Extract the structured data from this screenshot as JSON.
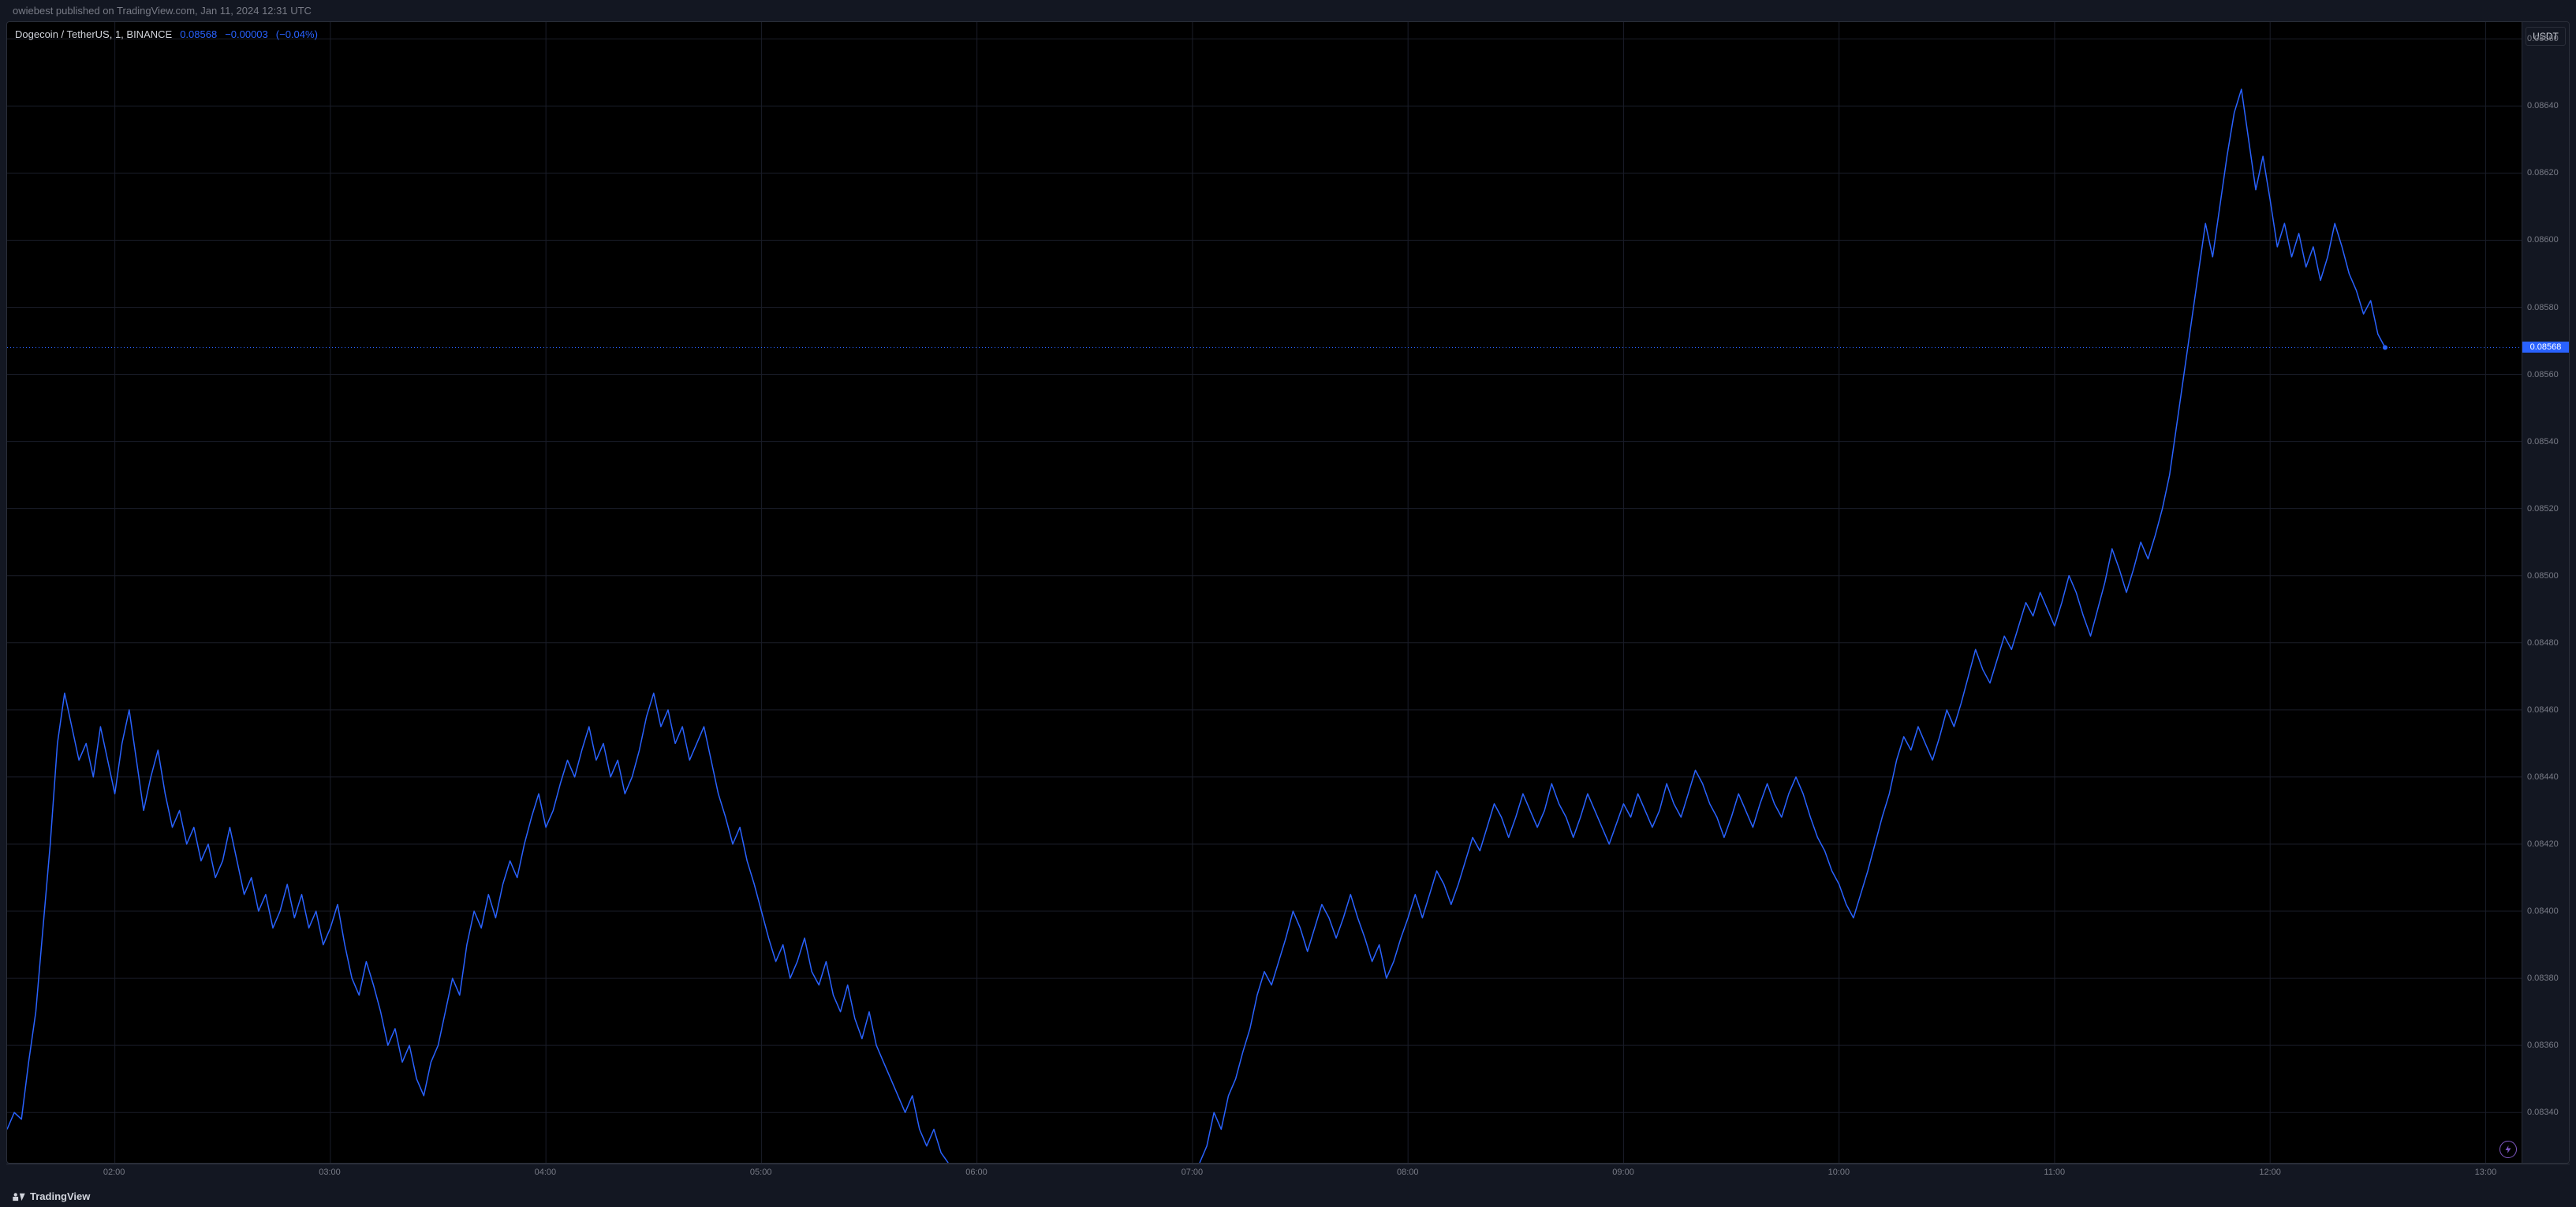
{
  "header": {
    "published_text": "owiebest published on TradingView.com, Jan 11, 2024 12:31 UTC"
  },
  "legend": {
    "symbol": "Dogecoin / TetherUS, 1, BINANCE",
    "price": "0.08568",
    "change": "−0.00003",
    "change_pct": "(−0.04%)"
  },
  "yaxis": {
    "unit": "USDT",
    "current_price_label": "0.08568",
    "ticks": [
      {
        "v": 0.0866,
        "label": "0.08660"
      },
      {
        "v": 0.0864,
        "label": "0.08640"
      },
      {
        "v": 0.0862,
        "label": "0.08620"
      },
      {
        "v": 0.086,
        "label": "0.08600"
      },
      {
        "v": 0.0858,
        "label": "0.08580"
      },
      {
        "v": 0.0856,
        "label": "0.08560"
      },
      {
        "v": 0.0854,
        "label": "0.08540"
      },
      {
        "v": 0.0852,
        "label": "0.08520"
      },
      {
        "v": 0.085,
        "label": "0.08500"
      },
      {
        "v": 0.0848,
        "label": "0.08480"
      },
      {
        "v": 0.0846,
        "label": "0.08460"
      },
      {
        "v": 0.0844,
        "label": "0.08440"
      },
      {
        "v": 0.0842,
        "label": "0.08420"
      },
      {
        "v": 0.084,
        "label": "0.08400"
      },
      {
        "v": 0.0838,
        "label": "0.08380"
      },
      {
        "v": 0.0836,
        "label": "0.08360"
      },
      {
        "v": 0.0834,
        "label": "0.08340"
      }
    ],
    "ylim": [
      0.08325,
      0.08665
    ]
  },
  "xaxis": {
    "ticks": [
      {
        "t": 120,
        "label": "02:00"
      },
      {
        "t": 180,
        "label": "03:00"
      },
      {
        "t": 240,
        "label": "04:00"
      },
      {
        "t": 300,
        "label": "05:00"
      },
      {
        "t": 360,
        "label": "06:00"
      },
      {
        "t": 420,
        "label": "07:00"
      },
      {
        "t": 480,
        "label": "08:00"
      },
      {
        "t": 540,
        "label": "09:00"
      },
      {
        "t": 600,
        "label": "10:00"
      },
      {
        "t": 660,
        "label": "11:00"
      },
      {
        "t": 720,
        "label": "12:00"
      },
      {
        "t": 780,
        "label": "13:00"
      }
    ],
    "xlim": [
      90,
      790
    ]
  },
  "chart": {
    "type": "line",
    "line_color": "#2962ff",
    "line_width": 1.5,
    "background": "#000000",
    "grid_color": "#1a1d29",
    "price_line_color": "#2962ff",
    "price_line_dash": "1,3",
    "current_point_color": "#2962ff",
    "last_price": 0.08568,
    "series": [
      [
        90,
        0.08335
      ],
      [
        92,
        0.0834
      ],
      [
        94,
        0.08338
      ],
      [
        96,
        0.08355
      ],
      [
        98,
        0.0837
      ],
      [
        100,
        0.08395
      ],
      [
        102,
        0.0842
      ],
      [
        104,
        0.0845
      ],
      [
        106,
        0.08465
      ],
      [
        108,
        0.08455
      ],
      [
        110,
        0.08445
      ],
      [
        112,
        0.0845
      ],
      [
        114,
        0.0844
      ],
      [
        116,
        0.08455
      ],
      [
        118,
        0.08445
      ],
      [
        120,
        0.08435
      ],
      [
        122,
        0.0845
      ],
      [
        124,
        0.0846
      ],
      [
        126,
        0.08445
      ],
      [
        128,
        0.0843
      ],
      [
        130,
        0.0844
      ],
      [
        132,
        0.08448
      ],
      [
        134,
        0.08435
      ],
      [
        136,
        0.08425
      ],
      [
        138,
        0.0843
      ],
      [
        140,
        0.0842
      ],
      [
        142,
        0.08425
      ],
      [
        144,
        0.08415
      ],
      [
        146,
        0.0842
      ],
      [
        148,
        0.0841
      ],
      [
        150,
        0.08415
      ],
      [
        152,
        0.08425
      ],
      [
        154,
        0.08415
      ],
      [
        156,
        0.08405
      ],
      [
        158,
        0.0841
      ],
      [
        160,
        0.084
      ],
      [
        162,
        0.08405
      ],
      [
        164,
        0.08395
      ],
      [
        166,
        0.084
      ],
      [
        168,
        0.08408
      ],
      [
        170,
        0.08398
      ],
      [
        172,
        0.08405
      ],
      [
        174,
        0.08395
      ],
      [
        176,
        0.084
      ],
      [
        178,
        0.0839
      ],
      [
        180,
        0.08395
      ],
      [
        182,
        0.08402
      ],
      [
        184,
        0.0839
      ],
      [
        186,
        0.0838
      ],
      [
        188,
        0.08375
      ],
      [
        190,
        0.08385
      ],
      [
        192,
        0.08378
      ],
      [
        194,
        0.0837
      ],
      [
        196,
        0.0836
      ],
      [
        198,
        0.08365
      ],
      [
        200,
        0.08355
      ],
      [
        202,
        0.0836
      ],
      [
        204,
        0.0835
      ],
      [
        206,
        0.08345
      ],
      [
        208,
        0.08355
      ],
      [
        210,
        0.0836
      ],
      [
        212,
        0.0837
      ],
      [
        214,
        0.0838
      ],
      [
        216,
        0.08375
      ],
      [
        218,
        0.0839
      ],
      [
        220,
        0.084
      ],
      [
        222,
        0.08395
      ],
      [
        224,
        0.08405
      ],
      [
        226,
        0.08398
      ],
      [
        228,
        0.08408
      ],
      [
        230,
        0.08415
      ],
      [
        232,
        0.0841
      ],
      [
        234,
        0.0842
      ],
      [
        236,
        0.08428
      ],
      [
        238,
        0.08435
      ],
      [
        240,
        0.08425
      ],
      [
        242,
        0.0843
      ],
      [
        244,
        0.08438
      ],
      [
        246,
        0.08445
      ],
      [
        248,
        0.0844
      ],
      [
        250,
        0.08448
      ],
      [
        252,
        0.08455
      ],
      [
        254,
        0.08445
      ],
      [
        256,
        0.0845
      ],
      [
        258,
        0.0844
      ],
      [
        260,
        0.08445
      ],
      [
        262,
        0.08435
      ],
      [
        264,
        0.0844
      ],
      [
        266,
        0.08448
      ],
      [
        268,
        0.08458
      ],
      [
        270,
        0.08465
      ],
      [
        272,
        0.08455
      ],
      [
        274,
        0.0846
      ],
      [
        276,
        0.0845
      ],
      [
        278,
        0.08455
      ],
      [
        280,
        0.08445
      ],
      [
        282,
        0.0845
      ],
      [
        284,
        0.08455
      ],
      [
        286,
        0.08445
      ],
      [
        288,
        0.08435
      ],
      [
        290,
        0.08428
      ],
      [
        292,
        0.0842
      ],
      [
        294,
        0.08425
      ],
      [
        296,
        0.08415
      ],
      [
        298,
        0.08408
      ],
      [
        300,
        0.084
      ],
      [
        302,
        0.08392
      ],
      [
        304,
        0.08385
      ],
      [
        306,
        0.0839
      ],
      [
        308,
        0.0838
      ],
      [
        310,
        0.08385
      ],
      [
        312,
        0.08392
      ],
      [
        314,
        0.08382
      ],
      [
        316,
        0.08378
      ],
      [
        318,
        0.08385
      ],
      [
        320,
        0.08375
      ],
      [
        322,
        0.0837
      ],
      [
        324,
        0.08378
      ],
      [
        326,
        0.08368
      ],
      [
        328,
        0.08362
      ],
      [
        330,
        0.0837
      ],
      [
        332,
        0.0836
      ],
      [
        334,
        0.08355
      ],
      [
        336,
        0.0835
      ],
      [
        338,
        0.08345
      ],
      [
        340,
        0.0834
      ],
      [
        342,
        0.08345
      ],
      [
        344,
        0.08335
      ],
      [
        346,
        0.0833
      ],
      [
        348,
        0.08335
      ],
      [
        350,
        0.08328
      ],
      [
        352,
        0.08325
      ],
      [
        422,
        0.08325
      ],
      [
        424,
        0.0833
      ],
      [
        426,
        0.0834
      ],
      [
        428,
        0.08335
      ],
      [
        430,
        0.08345
      ],
      [
        432,
        0.0835
      ],
      [
        434,
        0.08358
      ],
      [
        436,
        0.08365
      ],
      [
        438,
        0.08375
      ],
      [
        440,
        0.08382
      ],
      [
        442,
        0.08378
      ],
      [
        444,
        0.08385
      ],
      [
        446,
        0.08392
      ],
      [
        448,
        0.084
      ],
      [
        450,
        0.08395
      ],
      [
        452,
        0.08388
      ],
      [
        454,
        0.08395
      ],
      [
        456,
        0.08402
      ],
      [
        458,
        0.08398
      ],
      [
        460,
        0.08392
      ],
      [
        462,
        0.08398
      ],
      [
        464,
        0.08405
      ],
      [
        466,
        0.08398
      ],
      [
        468,
        0.08392
      ],
      [
        470,
        0.08385
      ],
      [
        472,
        0.0839
      ],
      [
        474,
        0.0838
      ],
      [
        476,
        0.08385
      ],
      [
        478,
        0.08392
      ],
      [
        480,
        0.08398
      ],
      [
        482,
        0.08405
      ],
      [
        484,
        0.08398
      ],
      [
        486,
        0.08405
      ],
      [
        488,
        0.08412
      ],
      [
        490,
        0.08408
      ],
      [
        492,
        0.08402
      ],
      [
        494,
        0.08408
      ],
      [
        496,
        0.08415
      ],
      [
        498,
        0.08422
      ],
      [
        500,
        0.08418
      ],
      [
        502,
        0.08425
      ],
      [
        504,
        0.08432
      ],
      [
        506,
        0.08428
      ],
      [
        508,
        0.08422
      ],
      [
        510,
        0.08428
      ],
      [
        512,
        0.08435
      ],
      [
        514,
        0.0843
      ],
      [
        516,
        0.08425
      ],
      [
        518,
        0.0843
      ],
      [
        520,
        0.08438
      ],
      [
        522,
        0.08432
      ],
      [
        524,
        0.08428
      ],
      [
        526,
        0.08422
      ],
      [
        528,
        0.08428
      ],
      [
        530,
        0.08435
      ],
      [
        532,
        0.0843
      ],
      [
        534,
        0.08425
      ],
      [
        536,
        0.0842
      ],
      [
        538,
        0.08426
      ],
      [
        540,
        0.08432
      ],
      [
        542,
        0.08428
      ],
      [
        544,
        0.08435
      ],
      [
        546,
        0.0843
      ],
      [
        548,
        0.08425
      ],
      [
        550,
        0.0843
      ],
      [
        552,
        0.08438
      ],
      [
        554,
        0.08432
      ],
      [
        556,
        0.08428
      ],
      [
        558,
        0.08435
      ],
      [
        560,
        0.08442
      ],
      [
        562,
        0.08438
      ],
      [
        564,
        0.08432
      ],
      [
        566,
        0.08428
      ],
      [
        568,
        0.08422
      ],
      [
        570,
        0.08428
      ],
      [
        572,
        0.08435
      ],
      [
        574,
        0.0843
      ],
      [
        576,
        0.08425
      ],
      [
        578,
        0.08432
      ],
      [
        580,
        0.08438
      ],
      [
        582,
        0.08432
      ],
      [
        584,
        0.08428
      ],
      [
        586,
        0.08435
      ],
      [
        588,
        0.0844
      ],
      [
        590,
        0.08435
      ],
      [
        592,
        0.08428
      ],
      [
        594,
        0.08422
      ],
      [
        596,
        0.08418
      ],
      [
        598,
        0.08412
      ],
      [
        600,
        0.08408
      ],
      [
        602,
        0.08402
      ],
      [
        604,
        0.08398
      ],
      [
        606,
        0.08405
      ],
      [
        608,
        0.08412
      ],
      [
        610,
        0.0842
      ],
      [
        612,
        0.08428
      ],
      [
        614,
        0.08435
      ],
      [
        616,
        0.08445
      ],
      [
        618,
        0.08452
      ],
      [
        620,
        0.08448
      ],
      [
        622,
        0.08455
      ],
      [
        624,
        0.0845
      ],
      [
        626,
        0.08445
      ],
      [
        628,
        0.08452
      ],
      [
        630,
        0.0846
      ],
      [
        632,
        0.08455
      ],
      [
        634,
        0.08462
      ],
      [
        636,
        0.0847
      ],
      [
        638,
        0.08478
      ],
      [
        640,
        0.08472
      ],
      [
        642,
        0.08468
      ],
      [
        644,
        0.08475
      ],
      [
        646,
        0.08482
      ],
      [
        648,
        0.08478
      ],
      [
        650,
        0.08485
      ],
      [
        652,
        0.08492
      ],
      [
        654,
        0.08488
      ],
      [
        656,
        0.08495
      ],
      [
        658,
        0.0849
      ],
      [
        660,
        0.08485
      ],
      [
        662,
        0.08492
      ],
      [
        664,
        0.085
      ],
      [
        666,
        0.08495
      ],
      [
        668,
        0.08488
      ],
      [
        670,
        0.08482
      ],
      [
        672,
        0.0849
      ],
      [
        674,
        0.08498
      ],
      [
        676,
        0.08508
      ],
      [
        678,
        0.08502
      ],
      [
        680,
        0.08495
      ],
      [
        682,
        0.08502
      ],
      [
        684,
        0.0851
      ],
      [
        686,
        0.08505
      ],
      [
        688,
        0.08512
      ],
      [
        690,
        0.0852
      ],
      [
        692,
        0.0853
      ],
      [
        694,
        0.08545
      ],
      [
        696,
        0.0856
      ],
      [
        698,
        0.08575
      ],
      [
        700,
        0.0859
      ],
      [
        702,
        0.08605
      ],
      [
        704,
        0.08595
      ],
      [
        706,
        0.0861
      ],
      [
        708,
        0.08625
      ],
      [
        710,
        0.08638
      ],
      [
        712,
        0.08645
      ],
      [
        714,
        0.0863
      ],
      [
        716,
        0.08615
      ],
      [
        718,
        0.08625
      ],
      [
        720,
        0.08612
      ],
      [
        722,
        0.08598
      ],
      [
        724,
        0.08605
      ],
      [
        726,
        0.08595
      ],
      [
        728,
        0.08602
      ],
      [
        730,
        0.08592
      ],
      [
        732,
        0.08598
      ],
      [
        734,
        0.08588
      ],
      [
        736,
        0.08595
      ],
      [
        738,
        0.08605
      ],
      [
        740,
        0.08598
      ],
      [
        742,
        0.0859
      ],
      [
        744,
        0.08585
      ],
      [
        746,
        0.08578
      ],
      [
        748,
        0.08582
      ],
      [
        750,
        0.08572
      ],
      [
        752,
        0.08568
      ]
    ]
  },
  "footer": {
    "brand": "TradingView"
  },
  "colors": {
    "bg": "#131722",
    "chart_bg": "#000000",
    "text_muted": "#787b86",
    "text": "#d1d4dc",
    "accent": "#2962ff",
    "border": "#2a2e39",
    "zap": "#7e57c2"
  }
}
